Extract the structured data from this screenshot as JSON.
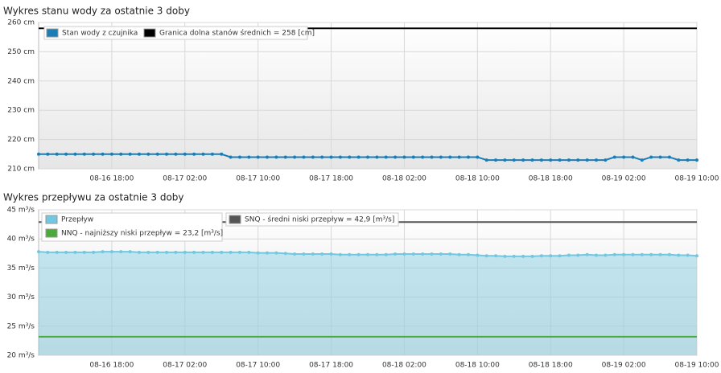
{
  "chart_data": [
    {
      "type": "line",
      "title": "Wykres stanu wody za ostatnie 3 doby",
      "x": [
        "08-16 10:00",
        "08-16 11:00",
        "08-16 12:00",
        "08-16 13:00",
        "08-16 14:00",
        "08-16 15:00",
        "08-16 16:00",
        "08-16 17:00",
        "08-16 18:00",
        "08-16 19:00",
        "08-16 20:00",
        "08-16 21:00",
        "08-16 22:00",
        "08-16 23:00",
        "08-17 00:00",
        "08-17 01:00",
        "08-17 02:00",
        "08-17 03:00",
        "08-17 04:00",
        "08-17 05:00",
        "08-17 06:00",
        "08-17 07:00",
        "08-17 08:00",
        "08-17 09:00",
        "08-17 10:00",
        "08-17 11:00",
        "08-17 12:00",
        "08-17 13:00",
        "08-17 14:00",
        "08-17 15:00",
        "08-17 16:00",
        "08-17 17:00",
        "08-17 18:00",
        "08-17 19:00",
        "08-17 20:00",
        "08-17 21:00",
        "08-17 22:00",
        "08-17 23:00",
        "08-18 00:00",
        "08-18 01:00",
        "08-18 02:00",
        "08-18 03:00",
        "08-18 04:00",
        "08-18 05:00",
        "08-18 06:00",
        "08-18 07:00",
        "08-18 08:00",
        "08-18 09:00",
        "08-18 10:00",
        "08-18 11:00",
        "08-18 12:00",
        "08-18 13:00",
        "08-18 14:00",
        "08-18 15:00",
        "08-18 16:00",
        "08-18 17:00",
        "08-18 18:00",
        "08-18 19:00",
        "08-18 20:00",
        "08-18 21:00",
        "08-18 22:00",
        "08-18 23:00",
        "08-19 00:00",
        "08-19 01:00",
        "08-19 02:00",
        "08-19 03:00",
        "08-19 04:00",
        "08-19 05:00",
        "08-19 06:00",
        "08-19 07:00",
        "08-19 08:00",
        "08-19 09:00",
        "08-19 10:00"
      ],
      "series": [
        {
          "name": "Stan wody z czujnika",
          "color": "#1b7db5",
          "values": [
            215,
            215,
            215,
            215,
            215,
            215,
            215,
            215,
            215,
            215,
            215,
            215,
            215,
            215,
            215,
            215,
            215,
            215,
            215,
            215,
            215,
            214,
            214,
            214,
            214,
            214,
            214,
            214,
            214,
            214,
            214,
            214,
            214,
            214,
            214,
            214,
            214,
            214,
            214,
            214,
            214,
            214,
            214,
            214,
            214,
            214,
            214,
            214,
            214,
            213,
            213,
            213,
            213,
            213,
            213,
            213,
            213,
            213,
            213,
            213,
            213,
            213,
            213,
            214,
            214,
            214,
            213,
            214,
            214,
            214,
            213,
            213,
            213
          ]
        }
      ],
      "thresholds": [
        {
          "name": "Granica dolna stanów średnich = 258 [cm]",
          "color": "#000000",
          "value": 258
        }
      ],
      "xlim": [
        "08-16 10:00",
        "08-19 10:00"
      ],
      "xticks": [
        "08-16 18:00",
        "08-17 02:00",
        "08-17 10:00",
        "08-17 18:00",
        "08-18 02:00",
        "08-18 10:00",
        "08-18 18:00",
        "08-19 02:00",
        "08-19 10:00"
      ],
      "ylim": [
        210,
        260
      ],
      "yticks": [
        {
          "value": 210,
          "label": "210 cm"
        },
        {
          "value": 220,
          "label": "220 cm"
        },
        {
          "value": 230,
          "label": "230 cm"
        },
        {
          "value": 240,
          "label": "240 cm"
        },
        {
          "value": 250,
          "label": "250 cm"
        },
        {
          "value": 260,
          "label": "260 cm"
        }
      ],
      "grid": true
    },
    {
      "type": "area",
      "title": "Wykres przepływu za ostatnie 3 doby",
      "x": [
        "08-16 10:00",
        "08-16 11:00",
        "08-16 12:00",
        "08-16 13:00",
        "08-16 14:00",
        "08-16 15:00",
        "08-16 16:00",
        "08-16 17:00",
        "08-16 18:00",
        "08-16 19:00",
        "08-16 20:00",
        "08-16 21:00",
        "08-16 22:00",
        "08-16 23:00",
        "08-17 00:00",
        "08-17 01:00",
        "08-17 02:00",
        "08-17 03:00",
        "08-17 04:00",
        "08-17 05:00",
        "08-17 06:00",
        "08-17 07:00",
        "08-17 08:00",
        "08-17 09:00",
        "08-17 10:00",
        "08-17 11:00",
        "08-17 12:00",
        "08-17 13:00",
        "08-17 14:00",
        "08-17 15:00",
        "08-17 16:00",
        "08-17 17:00",
        "08-17 18:00",
        "08-17 19:00",
        "08-17 20:00",
        "08-17 21:00",
        "08-17 22:00",
        "08-17 23:00",
        "08-18 00:00",
        "08-18 01:00",
        "08-18 02:00",
        "08-18 03:00",
        "08-18 04:00",
        "08-18 05:00",
        "08-18 06:00",
        "08-18 07:00",
        "08-18 08:00",
        "08-18 09:00",
        "08-18 10:00",
        "08-18 11:00",
        "08-18 12:00",
        "08-18 13:00",
        "08-18 14:00",
        "08-18 15:00",
        "08-18 16:00",
        "08-18 17:00",
        "08-18 18:00",
        "08-18 19:00",
        "08-18 20:00",
        "08-18 21:00",
        "08-18 22:00",
        "08-18 23:00",
        "08-19 00:00",
        "08-19 01:00",
        "08-19 02:00",
        "08-19 03:00",
        "08-19 04:00",
        "08-19 05:00",
        "08-19 06:00",
        "08-19 07:00",
        "08-19 08:00",
        "08-19 09:00",
        "08-19 10:00"
      ],
      "series": [
        {
          "name": "Przepływ",
          "color": "#72c8e0",
          "values": [
            37.8,
            37.7,
            37.7,
            37.7,
            37.7,
            37.7,
            37.7,
            37.8,
            37.8,
            37.8,
            37.8,
            37.7,
            37.7,
            37.7,
            37.7,
            37.7,
            37.7,
            37.7,
            37.7,
            37.7,
            37.7,
            37.7,
            37.7,
            37.7,
            37.6,
            37.6,
            37.6,
            37.5,
            37.4,
            37.4,
            37.4,
            37.4,
            37.4,
            37.3,
            37.3,
            37.3,
            37.3,
            37.3,
            37.3,
            37.4,
            37.4,
            37.4,
            37.4,
            37.4,
            37.4,
            37.4,
            37.3,
            37.3,
            37.2,
            37.1,
            37.1,
            37.0,
            37.0,
            37.0,
            37.0,
            37.1,
            37.1,
            37.1,
            37.2,
            37.2,
            37.3,
            37.2,
            37.2,
            37.3,
            37.3,
            37.3,
            37.3,
            37.3,
            37.3,
            37.3,
            37.2,
            37.2,
            37.1
          ]
        }
      ],
      "thresholds": [
        {
          "name": "SNQ - średni niski przepływ = 42,9 [m³/s]",
          "color": "#555555",
          "value": 42.9
        },
        {
          "name": "NNQ - najniższy niski przepływ = 23,2 [m³/s]",
          "color": "#4aab3a",
          "value": 23.2
        }
      ],
      "xlim": [
        "08-16 10:00",
        "08-19 10:00"
      ],
      "xticks": [
        "08-16 18:00",
        "08-17 02:00",
        "08-17 10:00",
        "08-17 18:00",
        "08-18 02:00",
        "08-18 10:00",
        "08-18 18:00",
        "08-19 02:00",
        "08-19 10:00"
      ],
      "ylim": [
        20,
        45
      ],
      "yticks": [
        {
          "value": 20,
          "label": "20 m³/s"
        },
        {
          "value": 25,
          "label": "25 m³/s"
        },
        {
          "value": 30,
          "label": "30 m³/s"
        },
        {
          "value": 35,
          "label": "35 m³/s"
        },
        {
          "value": 40,
          "label": "40 m³/s"
        },
        {
          "value": 45,
          "label": "45 m³/s"
        }
      ],
      "grid": true
    }
  ]
}
